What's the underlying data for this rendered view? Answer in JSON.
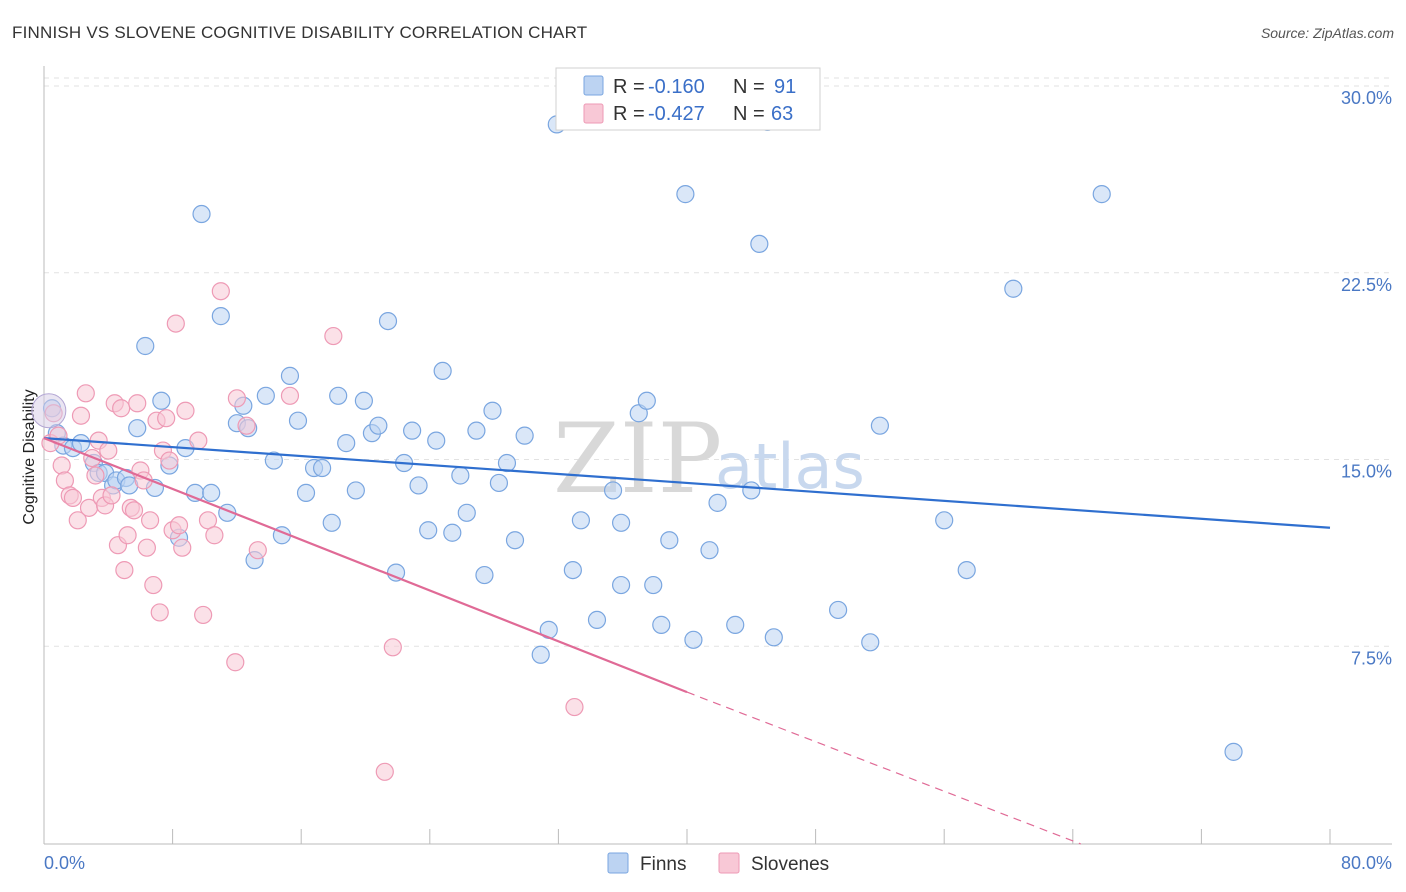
{
  "chart_data": {
    "type": "scatter",
    "title": "FINNISH VS SLOVENE COGNITIVE DISABILITY CORRELATION CHART",
    "source": "Source: ZipAtlas.com",
    "ylabel": "Cognitive Disability",
    "xlabel": "",
    "xlim": [
      0,
      80
    ],
    "ylim": [
      0,
      30
    ],
    "x_tick_labels": {
      "min": "0.0%",
      "max": "80.0%"
    },
    "y_ticks": [
      {
        "value": 7.5,
        "label": "7.5%"
      },
      {
        "value": 15.0,
        "label": "15.0%"
      },
      {
        "value": 22.5,
        "label": "22.5%"
      },
      {
        "value": 30.0,
        "label": "30.0%"
      }
    ],
    "grid": "horizontal-dashed",
    "watermark": {
      "main": "ZIP",
      "sub": "atlas"
    },
    "legend": [
      {
        "r_label": "R =",
        "r_value": "-0.160",
        "n_label": "N =",
        "n_value": "91"
      },
      {
        "r_label": "R =",
        "r_value": "-0.427",
        "n_label": "N =",
        "n_value": "63"
      }
    ],
    "series": [
      {
        "name": "Finns",
        "color": "#7aa6e0",
        "fill": "#bcd3f2",
        "trend_color": "#2f6fcf",
        "trend": {
          "x0": 0,
          "y0": 16.3,
          "x1": 80,
          "y1": 12.7
        },
        "points": [
          [
            0.5,
            17.5
          ],
          [
            0.8,
            16.5
          ],
          [
            1.2,
            16.0
          ],
          [
            1.8,
            15.9
          ],
          [
            2.3,
            16.1
          ],
          [
            3.1,
            15.3
          ],
          [
            3.4,
            14.9
          ],
          [
            3.8,
            14.9
          ],
          [
            4.3,
            14.4
          ],
          [
            4.5,
            14.6
          ],
          [
            5.1,
            14.7
          ],
          [
            5.3,
            14.4
          ],
          [
            5.8,
            16.7
          ],
          [
            6.3,
            20.0
          ],
          [
            6.9,
            14.3
          ],
          [
            7.3,
            17.8
          ],
          [
            7.8,
            15.2
          ],
          [
            8.4,
            12.3
          ],
          [
            8.8,
            15.9
          ],
          [
            9.4,
            14.1
          ],
          [
            9.8,
            25.3
          ],
          [
            10.4,
            14.1
          ],
          [
            11.0,
            21.2
          ],
          [
            11.4,
            13.3
          ],
          [
            12.0,
            16.9
          ],
          [
            12.4,
            17.6
          ],
          [
            12.7,
            16.7
          ],
          [
            13.1,
            11.4
          ],
          [
            13.8,
            18.0
          ],
          [
            14.3,
            15.4
          ],
          [
            14.8,
            12.4
          ],
          [
            15.3,
            18.8
          ],
          [
            15.8,
            17.0
          ],
          [
            16.3,
            14.1
          ],
          [
            16.8,
            15.1
          ],
          [
            17.3,
            15.1
          ],
          [
            17.9,
            12.9
          ],
          [
            18.3,
            18.0
          ],
          [
            18.8,
            16.1
          ],
          [
            19.4,
            14.2
          ],
          [
            19.9,
            17.8
          ],
          [
            20.4,
            16.5
          ],
          [
            20.8,
            16.8
          ],
          [
            21.4,
            21.0
          ],
          [
            21.9,
            10.9
          ],
          [
            22.4,
            15.3
          ],
          [
            22.9,
            16.6
          ],
          [
            23.3,
            14.4
          ],
          [
            23.9,
            12.6
          ],
          [
            24.4,
            16.2
          ],
          [
            24.8,
            19.0
          ],
          [
            25.4,
            12.5
          ],
          [
            25.9,
            14.8
          ],
          [
            26.3,
            13.3
          ],
          [
            26.9,
            16.6
          ],
          [
            27.4,
            10.8
          ],
          [
            27.9,
            17.4
          ],
          [
            28.3,
            14.5
          ],
          [
            28.8,
            15.3
          ],
          [
            29.3,
            12.2
          ],
          [
            29.9,
            16.4
          ],
          [
            30.9,
            7.6
          ],
          [
            31.4,
            8.6
          ],
          [
            31.9,
            28.9
          ],
          [
            32.9,
            11.0
          ],
          [
            33.4,
            13.0
          ],
          [
            34.4,
            9.0
          ],
          [
            35.4,
            14.2
          ],
          [
            35.9,
            12.9
          ],
          [
            35.9,
            10.4
          ],
          [
            37.0,
            17.3
          ],
          [
            37.5,
            17.8
          ],
          [
            37.9,
            10.4
          ],
          [
            38.4,
            8.8
          ],
          [
            38.9,
            12.2
          ],
          [
            39.9,
            26.1
          ],
          [
            40.4,
            8.2
          ],
          [
            41.4,
            11.8
          ],
          [
            41.9,
            13.7
          ],
          [
            43.0,
            8.8
          ],
          [
            44.0,
            14.2
          ],
          [
            45.0,
            29.0
          ],
          [
            44.5,
            24.1
          ],
          [
            45.4,
            8.3
          ],
          [
            49.4,
            9.4
          ],
          [
            51.4,
            8.1
          ],
          [
            52.0,
            16.8
          ],
          [
            56.0,
            13.0
          ],
          [
            57.4,
            11.0
          ],
          [
            60.3,
            22.3
          ],
          [
            65.8,
            26.1
          ],
          [
            74.0,
            3.7
          ]
        ]
      },
      {
        "name": "Slovenes",
        "color": "#ee9ab5",
        "fill": "#f8c8d6",
        "trend_color": "#e06a96",
        "trend": {
          "x0": 0,
          "y0": 16.3,
          "x1": 40,
          "y1": 6.1
        },
        "trend_dashed": {
          "x0": 40,
          "y0": 6.1,
          "x1": 64.5,
          "y1": 0
        },
        "points": [
          [
            0.4,
            16.1
          ],
          [
            0.6,
            17.3
          ],
          [
            0.9,
            16.4
          ],
          [
            1.1,
            15.2
          ],
          [
            1.3,
            14.6
          ],
          [
            1.6,
            14.0
          ],
          [
            1.8,
            13.9
          ],
          [
            2.1,
            13.0
          ],
          [
            2.3,
            17.2
          ],
          [
            2.6,
            18.1
          ],
          [
            2.8,
            13.5
          ],
          [
            3.0,
            15.5
          ],
          [
            3.2,
            14.8
          ],
          [
            3.4,
            16.2
          ],
          [
            3.6,
            13.9
          ],
          [
            3.8,
            13.6
          ],
          [
            4.0,
            15.8
          ],
          [
            4.2,
            14.0
          ],
          [
            4.4,
            17.7
          ],
          [
            4.6,
            12.0
          ],
          [
            4.8,
            17.5
          ],
          [
            5.0,
            11.0
          ],
          [
            5.2,
            12.4
          ],
          [
            5.4,
            13.5
          ],
          [
            5.6,
            13.4
          ],
          [
            5.8,
            17.7
          ],
          [
            6.0,
            15.0
          ],
          [
            6.2,
            14.6
          ],
          [
            6.4,
            11.9
          ],
          [
            6.6,
            13.0
          ],
          [
            6.8,
            10.4
          ],
          [
            7.0,
            17.0
          ],
          [
            7.2,
            9.3
          ],
          [
            7.4,
            15.8
          ],
          [
            7.6,
            17.1
          ],
          [
            7.8,
            15.4
          ],
          [
            8.0,
            12.6
          ],
          [
            8.2,
            20.9
          ],
          [
            8.4,
            12.8
          ],
          [
            8.6,
            11.9
          ],
          [
            8.8,
            17.4
          ],
          [
            9.6,
            16.2
          ],
          [
            9.9,
            9.2
          ],
          [
            10.2,
            13.0
          ],
          [
            10.6,
            12.4
          ],
          [
            11.0,
            22.2
          ],
          [
            11.9,
            7.3
          ],
          [
            12.0,
            17.9
          ],
          [
            12.6,
            16.8
          ],
          [
            13.3,
            11.8
          ],
          [
            15.3,
            18.0
          ],
          [
            18.0,
            20.4
          ],
          [
            21.2,
            2.9
          ],
          [
            21.7,
            7.9
          ],
          [
            33.0,
            5.5
          ]
        ]
      }
    ]
  }
}
